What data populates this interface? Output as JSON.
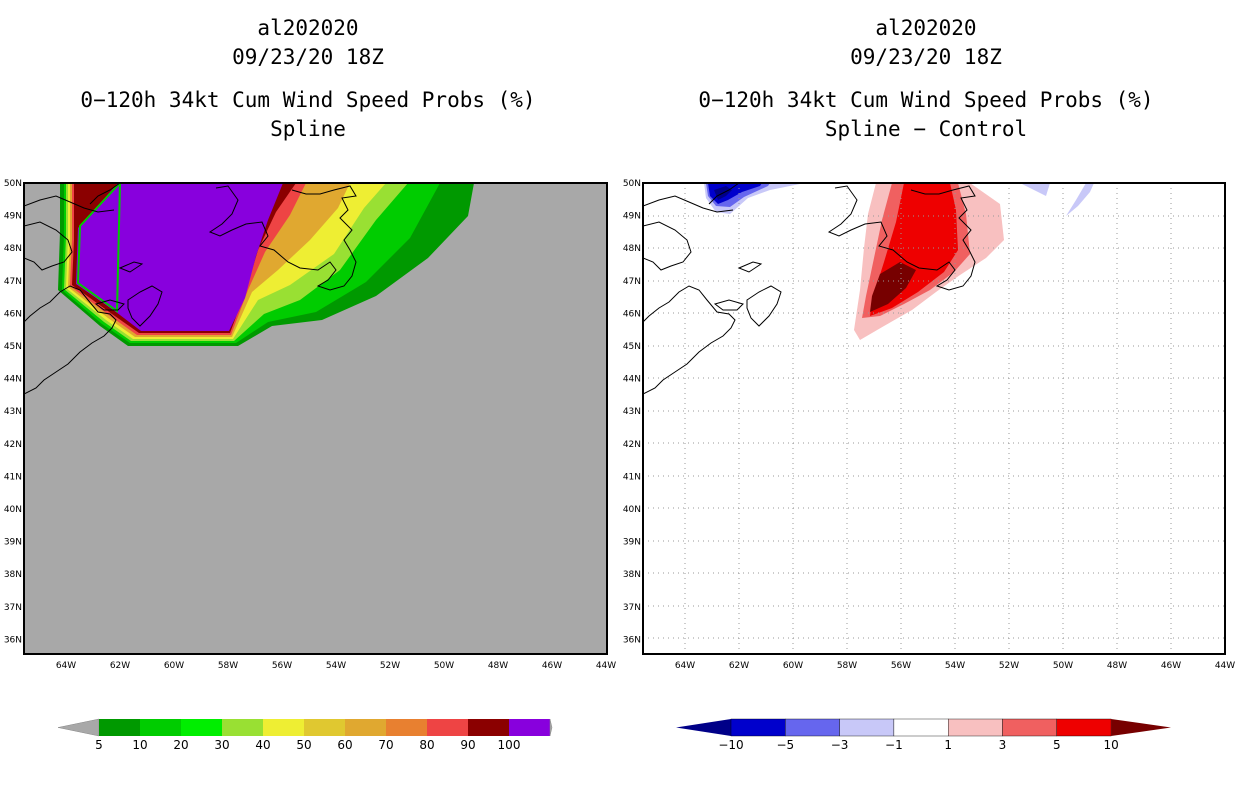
{
  "left_panel": {
    "storm_id": "al202020",
    "datetime": "09/23/20 18Z",
    "product": "0−120h 34kt Cum Wind Speed Probs (%)",
    "subtitle": "Spline"
  },
  "right_panel": {
    "storm_id": "al202020",
    "datetime": "09/23/20 18Z",
    "product": "0−120h 34kt Cum Wind Speed Probs (%)",
    "subtitle": "Spline − Control"
  },
  "lat_labels": [
    "50N",
    "49N",
    "48N",
    "47N",
    "46N",
    "45N",
    "44N",
    "43N",
    "42N",
    "41N",
    "40N",
    "39N",
    "38N",
    "37N",
    "36N"
  ],
  "lon_labels": [
    "64W",
    "62W",
    "60W",
    "58W",
    "56W",
    "54W",
    "52W",
    "50W",
    "48W",
    "46W",
    "44W"
  ],
  "left_colorbar": {
    "labels": [
      "5",
      "10",
      "20",
      "30",
      "40",
      "50",
      "60",
      "70",
      "80",
      "90",
      "100"
    ],
    "colors": [
      "#009900",
      "#00cc00",
      "#00ee00",
      "#99e033",
      "#eeee33",
      "#e0c830",
      "#e0a830",
      "#e88030",
      "#ee4444",
      "#8b0000",
      "#8800dd"
    ],
    "end_color": "#a8a8a8"
  },
  "right_colorbar": {
    "labels": [
      "−10",
      "−5",
      "−3",
      "−1",
      "1",
      "3",
      "5",
      "10"
    ],
    "colors": [
      "#0000cc",
      "#6666ee",
      "#c8c8f8",
      "#ffffff",
      "#f8c0c0",
      "#f06060",
      "#ee0000"
    ],
    "low_color": "#000088",
    "high_color": "#770000"
  }
}
